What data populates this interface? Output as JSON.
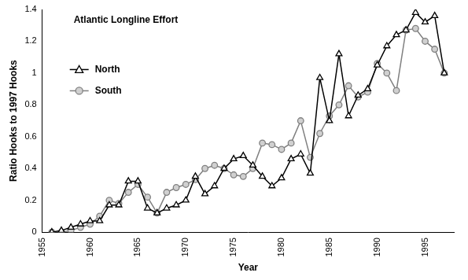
{
  "chart_data": {
    "type": "line",
    "title": "Atlantic Longline Effort",
    "x_label": "Year",
    "y_label": "Ratio Hooks to 1997 Hooks",
    "x": [
      1956,
      1957,
      1958,
      1959,
      1960,
      1961,
      1962,
      1963,
      1964,
      1965,
      1966,
      1967,
      1968,
      1969,
      1970,
      1971,
      1972,
      1973,
      1974,
      1975,
      1976,
      1977,
      1978,
      1979,
      1980,
      1981,
      1982,
      1983,
      1984,
      1985,
      1986,
      1987,
      1988,
      1989,
      1990,
      1991,
      1992,
      1993,
      1994,
      1995,
      1996,
      1997
    ],
    "series": [
      {
        "name": "North",
        "color": "#000000",
        "marker": "triangle",
        "line_style": "solid",
        "values": [
          0,
          0.01,
          0.03,
          0.05,
          0.07,
          0.07,
          0.17,
          0.17,
          0.32,
          0.32,
          0.15,
          0.12,
          0.15,
          0.17,
          0.2,
          0.35,
          0.24,
          0.29,
          0.4,
          0.46,
          0.48,
          0.42,
          0.35,
          0.29,
          0.34,
          0.46,
          0.49,
          0.37,
          0.97,
          0.7,
          1.12,
          0.73,
          0.86,
          0.9,
          1.05,
          1.17,
          1.24,
          1.27,
          1.38,
          1.32,
          1.36,
          1.0
        ]
      },
      {
        "name": "South",
        "color": "#808080",
        "marker": "circle",
        "line_style": "solid",
        "values": [
          0,
          0,
          0.01,
          0.03,
          0.05,
          0.1,
          0.2,
          0.18,
          0.25,
          0.3,
          0.22,
          0.12,
          0.25,
          0.28,
          0.3,
          0.33,
          0.4,
          0.42,
          0.4,
          0.36,
          0.35,
          0.4,
          0.56,
          0.55,
          0.52,
          0.56,
          0.7,
          0.47,
          0.62,
          0.73,
          0.8,
          0.92,
          0.85,
          0.88,
          1.06,
          1.0,
          0.89,
          1.27,
          1.28,
          1.2,
          1.15,
          1.0
        ]
      }
    ],
    "xlim": [
      1955,
      1998
    ],
    "xticks": [
      1955,
      1960,
      1965,
      1970,
      1975,
      1980,
      1985,
      1990,
      1995
    ],
    "ylim": [
      0,
      1.4
    ],
    "yticks": [
      0,
      0.2,
      0.4,
      0.6,
      0.8,
      1,
      1.2,
      1.4
    ],
    "grid": false,
    "legend": "left"
  }
}
